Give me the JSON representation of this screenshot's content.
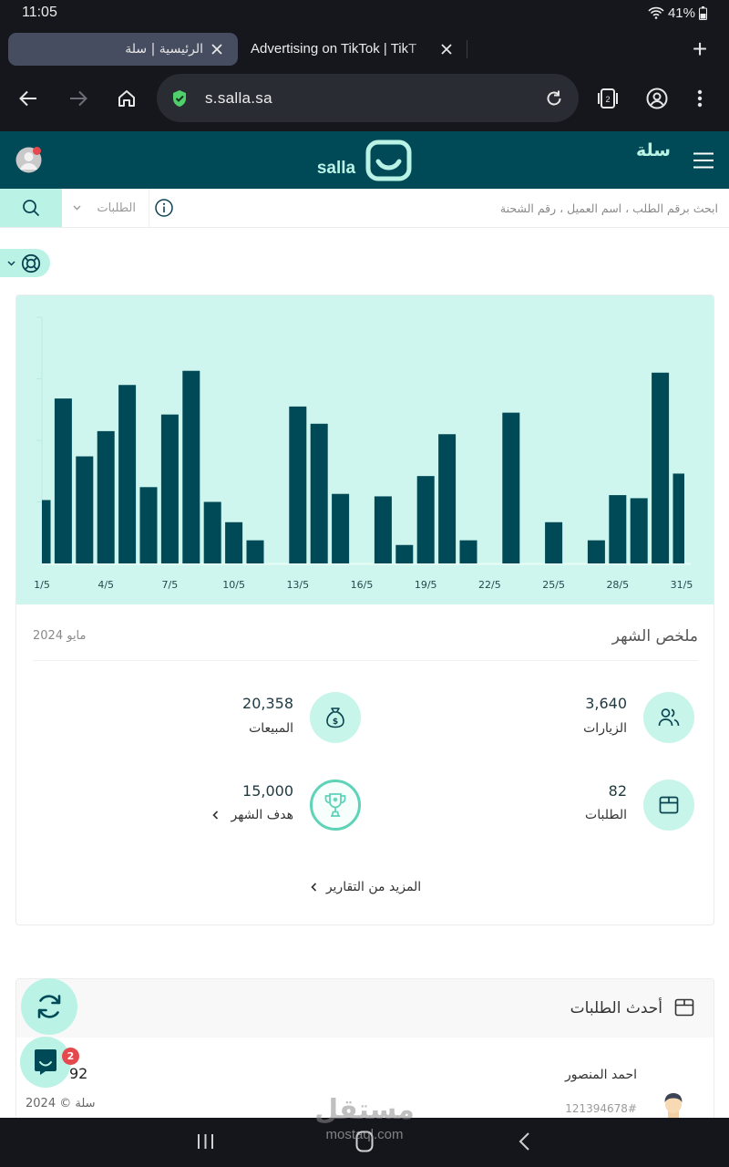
{
  "status_bar": {
    "time": "11:05",
    "battery": "41%"
  },
  "browser": {
    "tabs": [
      {
        "title": "الرئيسية | سلة",
        "active": true
      },
      {
        "title": "Advertising on TikTok | TikT",
        "active": false
      }
    ],
    "new_tab_label": "+",
    "url": "s.salla.sa",
    "tab_count": "2"
  },
  "header": {
    "logo_ar": "سلة",
    "logo_en": "salla"
  },
  "search": {
    "placeholder": "ابحث برقم الطلب ، اسم العميل ، رقم الشحنة",
    "scope": "الطلبات"
  },
  "chart_data": {
    "type": "bar",
    "title": "",
    "xlabel": "",
    "ylabel": "",
    "categories": [
      "1/5",
      "2/5",
      "3/5",
      "4/5",
      "5/5",
      "6/5",
      "7/5",
      "8/5",
      "9/5",
      "10/5",
      "11/5",
      "12/5",
      "13/5",
      "14/5",
      "15/5",
      "16/5",
      "17/5",
      "18/5",
      "19/5",
      "20/5",
      "21/5",
      "22/5",
      "23/5",
      "24/5",
      "25/5",
      "26/5",
      "27/5",
      "28/5",
      "29/5",
      "30/5",
      "31/5"
    ],
    "x_tick_labels": [
      "1/5",
      "4/5",
      "7/5",
      "10/5",
      "13/5",
      "16/5",
      "19/5",
      "22/5",
      "25/5",
      "28/5",
      "31/5"
    ],
    "values": [
      515,
      1340,
      870,
      1075,
      1450,
      620,
      1210,
      1565,
      500,
      335,
      188,
      0,
      1275,
      1135,
      565,
      0,
      545,
      150,
      710,
      1050,
      188,
      0,
      1225,
      0,
      335,
      0,
      188,
      555,
      530,
      1550,
      730
    ],
    "ylim": [
      0,
      2000
    ],
    "y_gridlines": [
      500,
      1000,
      1500,
      2000
    ],
    "y_tick_labels_visible": false,
    "grid": false,
    "legend": null,
    "bar_color": "#004a57",
    "background": "#cff6ee"
  },
  "summary": {
    "title": "ملخص الشهر",
    "period": "مايو 2024",
    "stats": [
      {
        "key": "visits",
        "value": "3,640",
        "label": "الزيارات",
        "icon": "users-icon"
      },
      {
        "key": "sales",
        "value": "20,358",
        "label": "المبيعات",
        "icon": "money-bag-icon"
      },
      {
        "key": "orders",
        "value": "82",
        "label": "الطلبات",
        "icon": "box-icon"
      },
      {
        "key": "month_goal",
        "value": "15,000",
        "label": "هدف الشهر",
        "icon": "trophy-icon"
      }
    ],
    "more_reports": "المزيد من التقارير"
  },
  "recent_orders": {
    "title": "أحدث الطلبات",
    "orders": [
      {
        "customer": "احمد المنصور",
        "order_id": "121394678#",
        "amount": "92"
      }
    ]
  },
  "footer": {
    "copyright": "سلة © 2024"
  },
  "chat": {
    "badge": "2"
  },
  "watermark": {
    "ar": "مستقل",
    "en": "mostaql.com"
  },
  "colors": {
    "brand_dark": "#004956",
    "brand_mint": "#baf3e6",
    "chart_bg": "#cff6ee",
    "bar": "#004a57",
    "badge": "#e5484d"
  }
}
